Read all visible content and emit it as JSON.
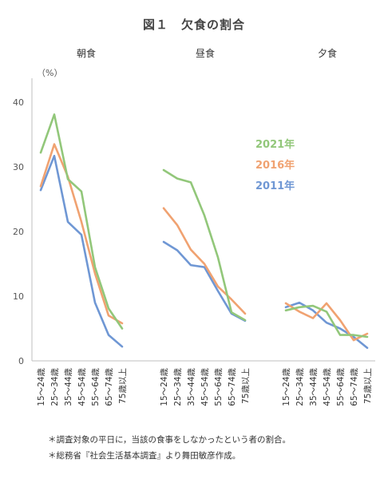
{
  "title": "図１　欠食の割合",
  "notes": [
    "＊調査対象の平日に，当該の食事をしなかったという者の割合。",
    "＊総務省『社会生活基本調査』より舞田敏彦作成。"
  ],
  "chart_data": {
    "type": "line",
    "ylabel": "（%）",
    "ylim": [
      0,
      40
    ],
    "yticks": [
      0,
      10,
      20,
      30,
      40
    ],
    "categories": [
      "15～24歳",
      "25～34歳",
      "35～44歳",
      "45～54歳",
      "55～64歳",
      "65～74歳",
      "75歳以上"
    ],
    "panels": [
      {
        "name": "朝食",
        "series": [
          {
            "name": "2021年",
            "color": "#92c77a",
            "values": [
              32.2,
              38.1,
              28.1,
              26.2,
              14.5,
              8.1,
              5.0
            ]
          },
          {
            "name": "2016年",
            "color": "#f0a271",
            "values": [
              27.0,
              33.5,
              28.5,
              21.5,
              13.5,
              7.0,
              5.8
            ]
          },
          {
            "name": "2011年",
            "color": "#6f97d4",
            "values": [
              26.4,
              31.7,
              21.5,
              19.5,
              9.0,
              4.0,
              2.2
            ]
          }
        ]
      },
      {
        "name": "昼食",
        "series": [
          {
            "name": "2021年",
            "color": "#92c77a",
            "values": [
              29.5,
              28.2,
              27.6,
              22.5,
              16.0,
              7.5,
              6.3
            ]
          },
          {
            "name": "2016年",
            "color": "#f0a271",
            "values": [
              23.6,
              21.0,
              17.2,
              15.0,
              11.5,
              9.5,
              7.3
            ]
          },
          {
            "name": "2011年",
            "color": "#6f97d4",
            "values": [
              18.4,
              17.1,
              14.8,
              14.5,
              10.8,
              7.3,
              6.2
            ]
          }
        ]
      },
      {
        "name": "夕食",
        "series": [
          {
            "name": "2021年",
            "color": "#92c77a",
            "values": [
              7.8,
              8.3,
              8.5,
              7.6,
              4.0,
              4.0,
              3.7
            ]
          },
          {
            "name": "2016年",
            "color": "#f0a271",
            "values": [
              8.9,
              7.6,
              6.6,
              8.9,
              6.3,
              3.2,
              4.2
            ]
          },
          {
            "name": "2011年",
            "color": "#6f97d4",
            "values": [
              8.3,
              9.0,
              7.8,
              5.9,
              5.0,
              3.7,
              2.0
            ]
          }
        ]
      }
    ],
    "legend": [
      {
        "name": "2021年",
        "color": "#92c77a"
      },
      {
        "name": "2016年",
        "color": "#f0a271"
      },
      {
        "name": "2011年",
        "color": "#6f97d4"
      }
    ],
    "grid": false
  }
}
